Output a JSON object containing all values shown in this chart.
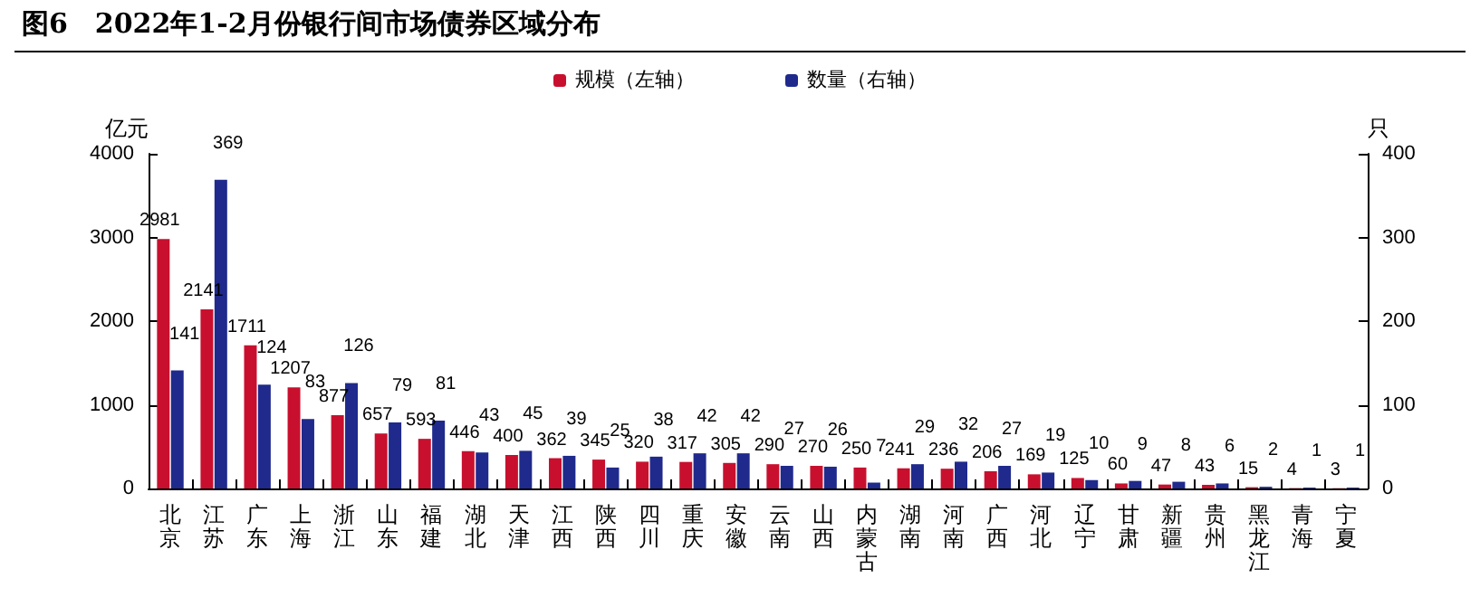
{
  "chart_data": {
    "type": "bar",
    "title": "图6　2022年1-2月份银行间市场债券区域分布",
    "ylabel": "亿元",
    "y2label": "只",
    "categories": [
      "北京",
      "江苏",
      "广东",
      "上海",
      "浙江",
      "山东",
      "福建",
      "湖北",
      "天津",
      "江西",
      "陕西",
      "四川",
      "重庆",
      "安徽",
      "云南",
      "山西",
      "内蒙古",
      "湖南",
      "河南",
      "广西",
      "河北",
      "辽宁",
      "甘肃",
      "新疆",
      "贵州",
      "黑龙江",
      "青海",
      "宁夏"
    ],
    "series": [
      {
        "name": "规模（左轴）",
        "color": "#c8102e",
        "values": [
          2981,
          2141,
          1711,
          1207,
          877,
          657,
          593,
          446,
          400,
          362,
          345,
          320,
          317,
          305,
          290,
          270,
          250,
          241,
          236,
          206,
          169,
          125,
          60,
          47,
          43,
          15,
          4,
          3
        ]
      },
      {
        "name": "数量（右轴）",
        "color": "#1f2a8c",
        "axis": "y2",
        "values": [
          141,
          369,
          124,
          83,
          126,
          79,
          81,
          43,
          45,
          39,
          25,
          38,
          42,
          42,
          27,
          26,
          7,
          29,
          32,
          27,
          19,
          10,
          9,
          8,
          6,
          2,
          1,
          1
        ]
      }
    ],
    "ylim": [
      0,
      4000
    ],
    "yticks": [
      0,
      1000,
      2000,
      3000,
      4000
    ],
    "y2lim": [
      0,
      400
    ],
    "y2ticks": [
      0,
      100,
      200,
      300,
      400
    ],
    "data_labels": true,
    "grid": false,
    "legend": "top"
  }
}
